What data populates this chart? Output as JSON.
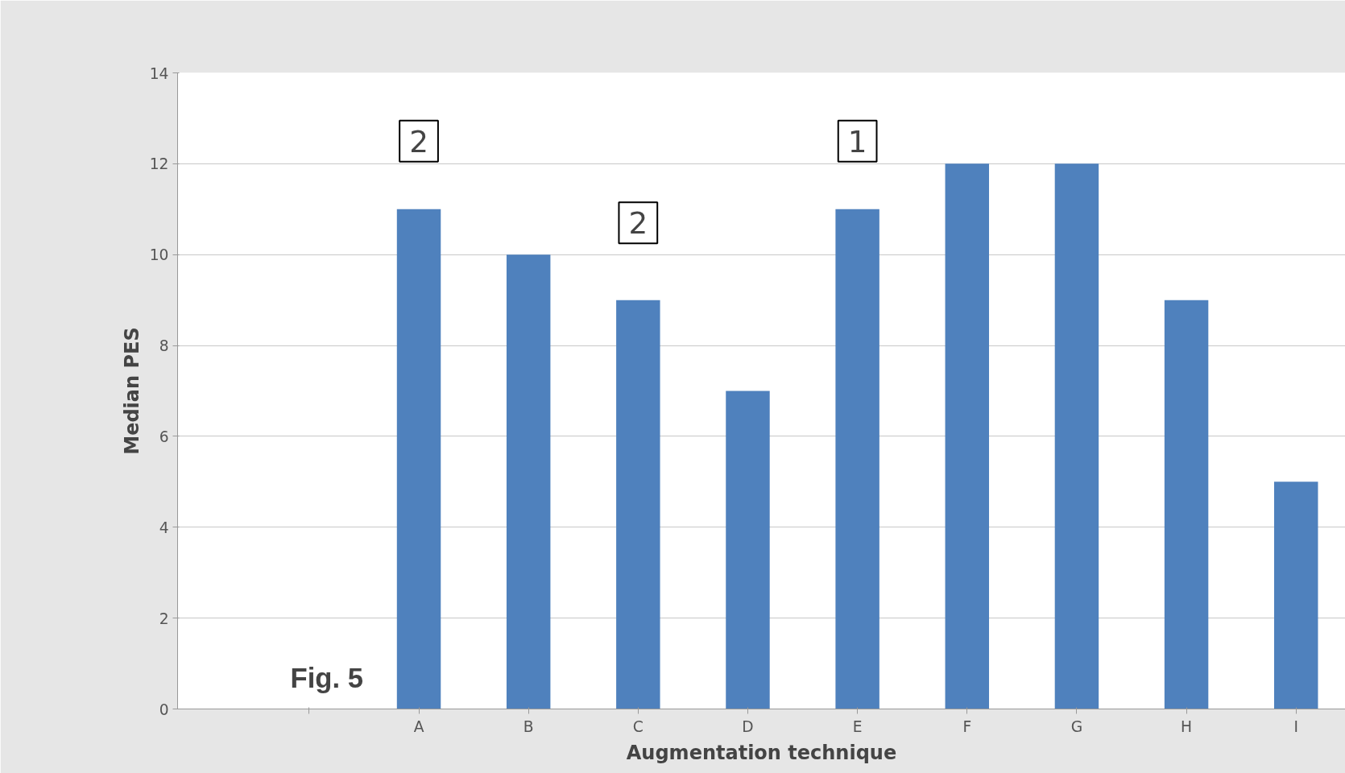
{
  "chart_data": {
    "type": "bar",
    "xlabel": "Augmentation technique",
    "ylabel": "Median PES",
    "categories": [
      null,
      "A",
      "B",
      "C",
      "D",
      "E",
      "F",
      "G",
      "H",
      "I"
    ],
    "values": [
      null,
      11,
      10,
      9,
      7,
      11,
      12,
      12,
      9,
      5
    ],
    "color": "#4f81bd",
    "ylim": [
      0,
      14
    ],
    "yticks": [
      0,
      2,
      4,
      6,
      8,
      10,
      12,
      14
    ],
    "grid": "y",
    "annotations": [
      "2",
      "2",
      "1",
      "Fig. 5"
    ]
  }
}
